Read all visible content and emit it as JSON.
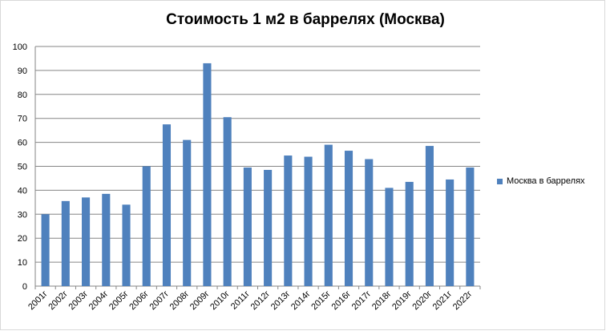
{
  "chart_data": {
    "type": "bar",
    "title": "Стоимость 1 м2 в баррелях (Москва)",
    "xlabel": "",
    "ylabel": "",
    "ylim": [
      0,
      100
    ],
    "yticks": [
      "0",
      "10",
      "20",
      "30",
      "40",
      "50",
      "60",
      "70",
      "80",
      "90",
      "100"
    ],
    "grid": true,
    "legend_position": "right",
    "categories": [
      "2001г",
      "2002г",
      "2003г",
      "2004г",
      "2005г",
      "2006г",
      "2007г",
      "2008г",
      "2009г",
      "2010г",
      "2011г",
      "2012г",
      "2013г",
      "2014г",
      "2015г",
      "2016г",
      "2017г",
      "2018г",
      "2019г",
      "2020г",
      "2021г",
      "2022г"
    ],
    "series": [
      {
        "name": "Москва в баррелях",
        "color": "#4f81bd",
        "values": [
          30,
          35.5,
          37,
          38.5,
          34,
          50,
          67.5,
          61,
          93,
          70.5,
          49.5,
          48.5,
          54.5,
          54,
          59,
          56.5,
          53,
          41,
          43.5,
          58.5,
          44.5,
          49.5
        ]
      }
    ]
  }
}
